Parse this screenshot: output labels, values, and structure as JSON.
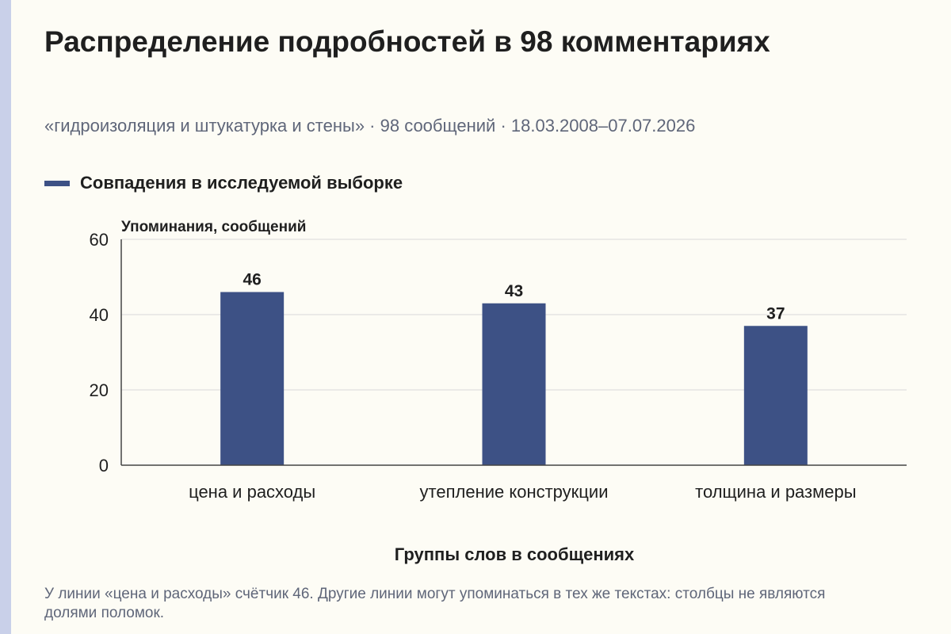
{
  "header": {
    "title": "Распределение подробностей в 98 комментариях",
    "subtitle": "«гидроизоляция и штукатурка и стены» · 98 сообщений · 18.03.2008–07.07.2026"
  },
  "legend": {
    "label": "Совпадения в исследуемой выборке"
  },
  "footnote": "У линии «цена и расходы» счётчик 46. Другие линии могут упоминаться в тех же текстах: столбцы не являются долями поломок.",
  "colors": {
    "bar": "#3d5185",
    "background": "#fdfcf5",
    "grid": "#d9d9d9",
    "axis": "#444444",
    "accent_stripe": "#c9d0e9"
  },
  "chart_data": {
    "type": "bar",
    "categories": [
      "цена и расходы",
      "утепление конструкции",
      "толщина и размеры"
    ],
    "series": [
      {
        "name": "Совпадения в исследуемой выборке",
        "values": [
          46,
          43,
          37
        ]
      }
    ],
    "data_labels": [
      "46",
      "43",
      "37"
    ],
    "xlabel": "Группы слов в сообщениях",
    "ylabel": "Упоминания, сообщений",
    "ylim": [
      0,
      60
    ],
    "yticks": [
      0,
      20,
      40,
      60
    ],
    "grid": true,
    "legend_position": "top-left"
  }
}
